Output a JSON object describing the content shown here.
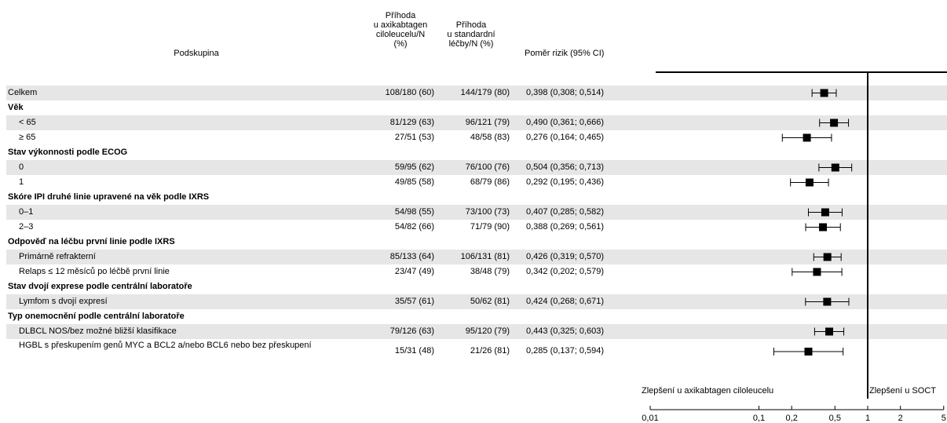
{
  "headers": {
    "subgroup": "Podskupina",
    "events_axi": [
      "Příhoda",
      "u axikabtagen",
      "ciloleucelu/N",
      "(%)"
    ],
    "events_std": [
      "Příhoda",
      "u standardní",
      "léčby/N (%)"
    ],
    "hr": "Poměr rizik (95% CI)"
  },
  "rows": [
    {
      "label": "Celkem",
      "type": "data",
      "indent": false,
      "shaded": true,
      "n1": "108/180 (60)",
      "n2": "144/179 (80)",
      "hr_text": "0,398 (0,308; 0,514)"
    },
    {
      "label": "Věk",
      "type": "header",
      "shaded": false
    },
    {
      "label": "< 65",
      "type": "data",
      "indent": true,
      "shaded": true,
      "n1": "81/129 (63)",
      "n2": "96/121 (79)",
      "hr_text": "0,490 (0,361; 0,666)"
    },
    {
      "label": "≥ 65",
      "type": "data",
      "indent": true,
      "shaded": false,
      "n1": "27/51 (53)",
      "n2": "48/58 (83)",
      "hr_text": "0,276 (0,164; 0,465)"
    },
    {
      "label": "Stav výkonnosti podle ECOG",
      "type": "header",
      "shaded": false
    },
    {
      "label": "0",
      "type": "data",
      "indent": true,
      "shaded": true,
      "n1": "59/95 (62)",
      "n2": "76/100 (76)",
      "hr_text": "0,504 (0,356; 0,713)"
    },
    {
      "label": "1",
      "type": "data",
      "indent": true,
      "shaded": false,
      "n1": "49/85 (58)",
      "n2": "68/79 (86)",
      "hr_text": "0,292 (0,195; 0,436)"
    },
    {
      "label": "Skóre IPI druhé linie upravené na věk podle IXRS",
      "type": "header",
      "shaded": false
    },
    {
      "label": "0–1",
      "type": "data",
      "indent": true,
      "shaded": true,
      "n1": "54/98 (55)",
      "n2": "73/100 (73)",
      "hr_text": "0,407 (0,285; 0,582)"
    },
    {
      "label": "2–3",
      "type": "data",
      "indent": true,
      "shaded": false,
      "n1": "54/82 (66)",
      "n2": "71/79 (90)",
      "hr_text": "0,388 (0,269; 0,561)"
    },
    {
      "label": "Odpověď na léčbu první linie podle IXRS",
      "type": "header",
      "shaded": false
    },
    {
      "label": "Primárně refrakterní",
      "type": "data",
      "indent": true,
      "shaded": true,
      "n1": "85/133 (64)",
      "n2": "106/131 (81)",
      "hr_text": "0,426 (0,319; 0,570)"
    },
    {
      "label": "Relaps ≤ 12 měsíců po léčbě první linie",
      "type": "data",
      "indent": true,
      "shaded": false,
      "n1": "23/47 (49)",
      "n2": "38/48 (79)",
      "hr_text": "0,342 (0,202; 0,579)"
    },
    {
      "label": "Stav dvojí exprese podle centrální laboratoře",
      "type": "header",
      "shaded": false
    },
    {
      "label": "Lymfom s dvojí expresí",
      "type": "data",
      "indent": true,
      "shaded": true,
      "n1": "35/57 (61)",
      "n2": "50/62 (81)",
      "hr_text": "0,424 (0,268; 0,671)"
    },
    {
      "label": "Typ onemocnění podle centrální laboratoře",
      "type": "header",
      "shaded": false
    },
    {
      "label": "DLBCL NOS/bez možné bližší klasifikace",
      "type": "data",
      "indent": true,
      "shaded": true,
      "n1": "79/126 (63)",
      "n2": "95/120 (79)",
      "hr_text": "0,443 (0,325; 0,603)"
    },
    {
      "label": "HGBL s přeskupením genů MYC a BCL2 a/nebo BCL6 nebo bez přeskupení",
      "type": "data",
      "indent": true,
      "shaded": false,
      "wrap": true,
      "n1": "15/31 (48)",
      "n2": "21/26 (81)",
      "hr_text": "0,285 (0,137; 0,594)"
    }
  ],
  "chart_data": {
    "type": "scatter",
    "subtype": "forest",
    "xscale": "log",
    "xlim": [
      0.01,
      5
    ],
    "reference_line": 1,
    "ticks": [
      {
        "value": 0.01,
        "label": "0,01"
      },
      {
        "value": 0.1,
        "label": "0,1"
      },
      {
        "value": 0.2,
        "label": "0,2"
      },
      {
        "value": 0.5,
        "label": "0,5"
      },
      {
        "value": 1,
        "label": "1"
      },
      {
        "value": 2,
        "label": "2"
      },
      {
        "value": 5,
        "label": "5"
      }
    ],
    "favors_left": "Zlepšení u axikabtagen ciloleucelu",
    "favors_right": "Zlepšení u SOCT",
    "points": [
      {
        "label": "Celkem",
        "hr": 0.398,
        "lo": 0.308,
        "hi": 0.514
      },
      {
        "label": "< 65",
        "hr": 0.49,
        "lo": 0.361,
        "hi": 0.666
      },
      {
        "label": "≥ 65",
        "hr": 0.276,
        "lo": 0.164,
        "hi": 0.465
      },
      {
        "label": "0",
        "hr": 0.504,
        "lo": 0.356,
        "hi": 0.713
      },
      {
        "label": "1",
        "hr": 0.292,
        "lo": 0.195,
        "hi": 0.436
      },
      {
        "label": "0–1",
        "hr": 0.407,
        "lo": 0.285,
        "hi": 0.582
      },
      {
        "label": "2–3",
        "hr": 0.388,
        "lo": 0.269,
        "hi": 0.561
      },
      {
        "label": "Primárně refrakterní",
        "hr": 0.426,
        "lo": 0.319,
        "hi": 0.57
      },
      {
        "label": "Relaps ≤ 12 měsíců po léčbě první linie",
        "hr": 0.342,
        "lo": 0.202,
        "hi": 0.579
      },
      {
        "label": "Lymfom s dvojí expresí",
        "hr": 0.424,
        "lo": 0.268,
        "hi": 0.671
      },
      {
        "label": "DLBCL NOS/bez možné bližší klasifikace",
        "hr": 0.443,
        "lo": 0.325,
        "hi": 0.603
      },
      {
        "label": "HGBL s přeskupením genů MYC a BCL2 a/nebo BCL6 nebo bez přeskupení",
        "hr": 0.285,
        "lo": 0.137,
        "hi": 0.594
      }
    ]
  }
}
